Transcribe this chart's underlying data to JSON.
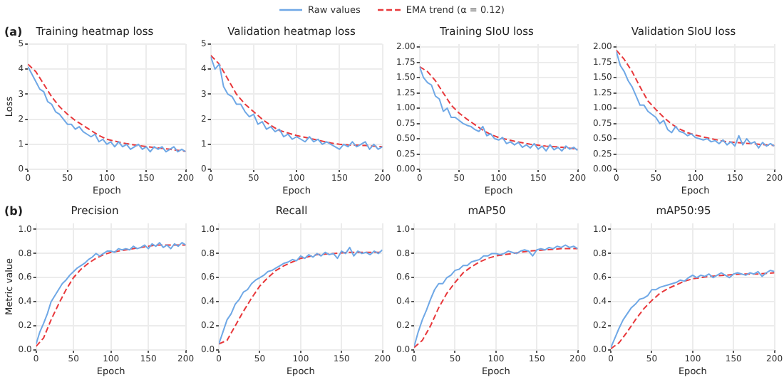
{
  "chart_data": [
    {
      "type": "line",
      "title": "Training heatmap loss",
      "xlabel": "Epoch",
      "ylabel": "Loss",
      "annotations": [
        "(a)"
      ],
      "legend": "top",
      "grid": true,
      "xlim": [
        0,
        200
      ],
      "xticks": [
        0,
        50,
        100,
        150,
        200
      ],
      "ylim": [
        0,
        5
      ],
      "yticks": [
        0,
        1,
        2,
        3,
        4,
        5
      ],
      "x": [
        0,
        5,
        10,
        15,
        20,
        25,
        30,
        35,
        40,
        45,
        50,
        55,
        60,
        65,
        70,
        75,
        80,
        85,
        90,
        95,
        100,
        105,
        110,
        115,
        120,
        125,
        130,
        135,
        140,
        145,
        150,
        155,
        160,
        165,
        170,
        175,
        180,
        185,
        190,
        195,
        200
      ],
      "series": [
        {
          "name": "Raw values",
          "color": "#6fa8e6",
          "line_style": "solid",
          "values": [
            4.1,
            3.8,
            3.5,
            3.2,
            3.1,
            2.7,
            2.6,
            2.3,
            2.2,
            2.0,
            1.8,
            1.8,
            1.6,
            1.7,
            1.5,
            1.4,
            1.3,
            1.4,
            1.1,
            1.2,
            1.0,
            1.1,
            0.9,
            1.1,
            0.9,
            1.0,
            0.8,
            0.9,
            1.0,
            0.8,
            0.9,
            0.7,
            0.9,
            0.8,
            0.9,
            0.7,
            0.8,
            0.9,
            0.7,
            0.8,
            0.7
          ]
        },
        {
          "name": "EMA trend (α = 0.12)",
          "color": "#e8383b",
          "marker": "none",
          "line_style": "dashed",
          "x": [
            0,
            10,
            20,
            30,
            40,
            50,
            60,
            70,
            80,
            90,
            100,
            120,
            140,
            160,
            180,
            200
          ],
          "values": [
            4.2,
            3.9,
            3.4,
            2.9,
            2.5,
            2.2,
            1.95,
            1.75,
            1.55,
            1.35,
            1.2,
            1.05,
            0.95,
            0.87,
            0.8,
            0.72
          ]
        }
      ]
    },
    {
      "type": "line",
      "title": "Validation heatmap loss",
      "xlabel": "Epoch",
      "grid": true,
      "xlim": [
        0,
        200
      ],
      "xticks": [
        0,
        50,
        100,
        150,
        200
      ],
      "ylim": [
        0,
        5
      ],
      "yticks": [
        0,
        1,
        2,
        3,
        4,
        5
      ],
      "x": [
        0,
        5,
        10,
        15,
        20,
        25,
        30,
        35,
        40,
        45,
        50,
        55,
        60,
        65,
        70,
        75,
        80,
        85,
        90,
        95,
        100,
        105,
        110,
        115,
        120,
        125,
        130,
        135,
        140,
        145,
        150,
        155,
        160,
        165,
        170,
        175,
        180,
        185,
        190,
        195,
        200
      ],
      "series": [
        {
          "color": "#6fa8e6",
          "line_style": "solid",
          "values": [
            4.5,
            4.0,
            4.2,
            3.3,
            3.0,
            2.9,
            2.6,
            2.6,
            2.3,
            2.1,
            2.2,
            1.8,
            1.9,
            1.6,
            1.7,
            1.5,
            1.6,
            1.3,
            1.4,
            1.2,
            1.3,
            1.2,
            1.1,
            1.3,
            1.1,
            1.2,
            1.0,
            1.1,
            1.0,
            0.9,
            0.8,
            1.0,
            0.9,
            1.1,
            0.9,
            1.0,
            1.1,
            0.8,
            1.0,
            0.8,
            0.9
          ]
        },
        {
          "color": "#e8383b",
          "marker": "none",
          "line_style": "dashed",
          "x": [
            0,
            10,
            20,
            30,
            40,
            50,
            60,
            70,
            80,
            90,
            100,
            120,
            140,
            150,
            160,
            180,
            200
          ],
          "values": [
            4.55,
            4.2,
            3.6,
            3.0,
            2.6,
            2.3,
            2.0,
            1.75,
            1.55,
            1.45,
            1.35,
            1.2,
            1.05,
            1.0,
            0.97,
            0.95,
            0.9
          ]
        }
      ]
    },
    {
      "type": "line",
      "title": "Training SIoU loss",
      "xlabel": "Epoch",
      "grid": true,
      "xlim": [
        0,
        200
      ],
      "xticks": [
        0,
        50,
        100,
        150,
        200
      ],
      "ylim": [
        0,
        2.05
      ],
      "yticks": [
        {
          "value": 0,
          "label": "0.00"
        },
        {
          "value": 0.25,
          "label": "0.25"
        },
        {
          "value": 0.5,
          "label": "0.50"
        },
        {
          "value": 0.75,
          "label": "0.75"
        },
        {
          "value": 1,
          "label": "1.00"
        },
        {
          "value": 1.25,
          "label": "1.25"
        },
        {
          "value": 1.5,
          "label": "1.50"
        },
        {
          "value": 1.75,
          "label": "1.75"
        },
        {
          "value": 2,
          "label": "2.00"
        }
      ],
      "x": [
        0,
        5,
        10,
        15,
        20,
        25,
        30,
        35,
        40,
        45,
        50,
        55,
        60,
        65,
        70,
        75,
        80,
        85,
        90,
        95,
        100,
        105,
        110,
        115,
        120,
        125,
        130,
        135,
        140,
        145,
        150,
        155,
        160,
        165,
        170,
        175,
        180,
        185,
        190,
        195,
        200
      ],
      "series": [
        {
          "color": "#6fa8e6",
          "line_style": "solid",
          "values": [
            1.68,
            1.5,
            1.42,
            1.38,
            1.2,
            1.15,
            0.95,
            1.0,
            0.85,
            0.85,
            0.8,
            0.75,
            0.72,
            0.7,
            0.65,
            0.62,
            0.7,
            0.55,
            0.58,
            0.5,
            0.48,
            0.52,
            0.42,
            0.45,
            0.4,
            0.44,
            0.36,
            0.4,
            0.35,
            0.42,
            0.33,
            0.38,
            0.3,
            0.4,
            0.32,
            0.36,
            0.3,
            0.38,
            0.33,
            0.36,
            0.31
          ]
        },
        {
          "color": "#e8383b",
          "marker": "none",
          "line_style": "dashed",
          "x": [
            0,
            10,
            20,
            30,
            40,
            50,
            60,
            70,
            80,
            90,
            100,
            120,
            140,
            160,
            180,
            200
          ],
          "values": [
            1.68,
            1.6,
            1.45,
            1.25,
            1.05,
            0.92,
            0.82,
            0.73,
            0.64,
            0.57,
            0.52,
            0.46,
            0.41,
            0.38,
            0.36,
            0.33
          ]
        }
      ]
    },
    {
      "type": "line",
      "title": "Validation SIoU loss",
      "xlabel": "Epoch",
      "grid": true,
      "xlim": [
        0,
        200
      ],
      "xticks": [
        0,
        50,
        100,
        150,
        200
      ],
      "ylim": [
        0,
        2.05
      ],
      "yticks": [
        {
          "value": 0,
          "label": "0.00"
        },
        {
          "value": 0.25,
          "label": "0.25"
        },
        {
          "value": 0.5,
          "label": "0.50"
        },
        {
          "value": 0.75,
          "label": "0.75"
        },
        {
          "value": 1,
          "label": "1.00"
        },
        {
          "value": 1.25,
          "label": "1.25"
        },
        {
          "value": 1.5,
          "label": "1.50"
        },
        {
          "value": 1.75,
          "label": "1.75"
        },
        {
          "value": 2,
          "label": "2.00"
        }
      ],
      "x": [
        0,
        5,
        10,
        15,
        20,
        25,
        30,
        35,
        40,
        45,
        50,
        55,
        60,
        65,
        70,
        75,
        80,
        85,
        90,
        95,
        100,
        105,
        110,
        115,
        120,
        125,
        130,
        135,
        140,
        145,
        150,
        155,
        160,
        165,
        170,
        175,
        180,
        185,
        190,
        195,
        200
      ],
      "series": [
        {
          "color": "#6fa8e6",
          "line_style": "solid",
          "values": [
            1.93,
            1.7,
            1.6,
            1.45,
            1.35,
            1.2,
            1.05,
            1.05,
            0.95,
            0.9,
            0.85,
            0.75,
            0.8,
            0.65,
            0.6,
            0.7,
            0.62,
            0.6,
            0.55,
            0.58,
            0.52,
            0.5,
            0.48,
            0.5,
            0.45,
            0.47,
            0.42,
            0.48,
            0.4,
            0.45,
            0.38,
            0.55,
            0.4,
            0.5,
            0.42,
            0.45,
            0.35,
            0.44,
            0.38,
            0.42,
            0.38
          ]
        },
        {
          "color": "#e8383b",
          "marker": "none",
          "line_style": "dashed",
          "x": [
            0,
            10,
            20,
            30,
            40,
            50,
            60,
            70,
            80,
            90,
            100,
            120,
            140,
            160,
            180,
            200
          ],
          "values": [
            1.95,
            1.8,
            1.6,
            1.35,
            1.12,
            0.98,
            0.85,
            0.74,
            0.66,
            0.6,
            0.56,
            0.5,
            0.45,
            0.43,
            0.41,
            0.39
          ]
        }
      ]
    },
    {
      "type": "line",
      "title": "Precision",
      "xlabel": "Epoch",
      "ylabel": "Metric value",
      "annotations": [
        "(b)"
      ],
      "grid": true,
      "xlim": [
        0,
        200
      ],
      "xticks": [
        0,
        50,
        100,
        150,
        200
      ],
      "ylim": [
        0,
        1.05
      ],
      "yticks": [
        {
          "value": 0,
          "label": "0.0"
        },
        {
          "value": 0.2,
          "label": "0.2"
        },
        {
          "value": 0.4,
          "label": "0.4"
        },
        {
          "value": 0.6,
          "label": "0.6"
        },
        {
          "value": 0.8,
          "label": "0.8"
        },
        {
          "value": 1,
          "label": "1.0"
        }
      ],
      "x": [
        0,
        5,
        10,
        15,
        20,
        25,
        30,
        35,
        40,
        45,
        50,
        55,
        60,
        65,
        70,
        75,
        80,
        85,
        90,
        95,
        100,
        105,
        110,
        115,
        120,
        125,
        130,
        135,
        140,
        145,
        150,
        155,
        160,
        165,
        170,
        175,
        180,
        185,
        190,
        195,
        200
      ],
      "series": [
        {
          "color": "#6fa8e6",
          "line_style": "solid",
          "values": [
            0.05,
            0.15,
            0.22,
            0.3,
            0.4,
            0.45,
            0.5,
            0.55,
            0.58,
            0.62,
            0.65,
            0.68,
            0.7,
            0.72,
            0.75,
            0.77,
            0.8,
            0.78,
            0.8,
            0.82,
            0.82,
            0.81,
            0.84,
            0.83,
            0.84,
            0.83,
            0.86,
            0.84,
            0.85,
            0.87,
            0.84,
            0.88,
            0.86,
            0.89,
            0.85,
            0.87,
            0.84,
            0.88,
            0.86,
            0.89,
            0.87
          ]
        },
        {
          "color": "#e8383b",
          "marker": "none",
          "line_style": "dashed",
          "x": [
            0,
            10,
            20,
            30,
            40,
            50,
            60,
            70,
            80,
            90,
            100,
            120,
            140,
            160,
            180,
            200
          ],
          "values": [
            0.03,
            0.1,
            0.25,
            0.38,
            0.5,
            0.6,
            0.67,
            0.72,
            0.76,
            0.79,
            0.81,
            0.83,
            0.85,
            0.87,
            0.87,
            0.87
          ]
        }
      ]
    },
    {
      "type": "line",
      "title": "Recall",
      "xlabel": "Epoch",
      "grid": true,
      "xlim": [
        0,
        200
      ],
      "xticks": [
        0,
        50,
        100,
        150,
        200
      ],
      "ylim": [
        0,
        1.05
      ],
      "yticks": [
        {
          "value": 0,
          "label": "0.0"
        },
        {
          "value": 0.2,
          "label": "0.2"
        },
        {
          "value": 0.4,
          "label": "0.4"
        },
        {
          "value": 0.6,
          "label": "0.6"
        },
        {
          "value": 0.8,
          "label": "0.8"
        },
        {
          "value": 1,
          "label": "1.0"
        }
      ],
      "x": [
        0,
        5,
        10,
        15,
        20,
        25,
        30,
        35,
        40,
        45,
        50,
        55,
        60,
        65,
        70,
        75,
        80,
        85,
        90,
        95,
        100,
        105,
        110,
        115,
        120,
        125,
        130,
        135,
        140,
        145,
        150,
        155,
        160,
        165,
        170,
        175,
        180,
        185,
        190,
        195,
        200
      ],
      "series": [
        {
          "color": "#6fa8e6",
          "line_style": "solid",
          "values": [
            0.05,
            0.15,
            0.25,
            0.3,
            0.38,
            0.42,
            0.48,
            0.5,
            0.55,
            0.58,
            0.6,
            0.62,
            0.65,
            0.66,
            0.68,
            0.7,
            0.72,
            0.73,
            0.75,
            0.74,
            0.78,
            0.76,
            0.79,
            0.77,
            0.8,
            0.78,
            0.81,
            0.79,
            0.8,
            0.76,
            0.82,
            0.8,
            0.85,
            0.78,
            0.82,
            0.8,
            0.81,
            0.79,
            0.82,
            0.8,
            0.83
          ]
        },
        {
          "color": "#e8383b",
          "marker": "none",
          "line_style": "dashed",
          "x": [
            0,
            10,
            20,
            30,
            40,
            50,
            60,
            70,
            80,
            90,
            100,
            120,
            140,
            160,
            180,
            200
          ],
          "values": [
            0.05,
            0.08,
            0.2,
            0.32,
            0.43,
            0.53,
            0.6,
            0.66,
            0.7,
            0.73,
            0.76,
            0.79,
            0.8,
            0.81,
            0.81,
            0.81
          ]
        }
      ]
    },
    {
      "type": "line",
      "title": "mAP50",
      "xlabel": "Epoch",
      "grid": true,
      "xlim": [
        0,
        200
      ],
      "xticks": [
        0,
        50,
        100,
        150,
        200
      ],
      "ylim": [
        0,
        1.05
      ],
      "yticks": [
        {
          "value": 0,
          "label": "0.0"
        },
        {
          "value": 0.2,
          "label": "0.2"
        },
        {
          "value": 0.4,
          "label": "0.4"
        },
        {
          "value": 0.6,
          "label": "0.6"
        },
        {
          "value": 0.8,
          "label": "0.8"
        },
        {
          "value": 1,
          "label": "1.0"
        }
      ],
      "x": [
        0,
        5,
        10,
        15,
        20,
        25,
        30,
        35,
        40,
        45,
        50,
        55,
        60,
        65,
        70,
        75,
        80,
        85,
        90,
        95,
        100,
        105,
        110,
        115,
        120,
        125,
        130,
        135,
        140,
        145,
        150,
        155,
        160,
        165,
        170,
        175,
        180,
        185,
        190,
        195,
        200
      ],
      "series": [
        {
          "color": "#6fa8e6",
          "line_style": "solid",
          "values": [
            0.03,
            0.15,
            0.25,
            0.33,
            0.42,
            0.5,
            0.55,
            0.55,
            0.6,
            0.62,
            0.66,
            0.67,
            0.7,
            0.7,
            0.73,
            0.74,
            0.75,
            0.78,
            0.78,
            0.8,
            0.8,
            0.79,
            0.8,
            0.82,
            0.81,
            0.8,
            0.82,
            0.83,
            0.82,
            0.78,
            0.83,
            0.84,
            0.83,
            0.85,
            0.84,
            0.86,
            0.85,
            0.87,
            0.85,
            0.86,
            0.84
          ]
        },
        {
          "color": "#e8383b",
          "marker": "none",
          "line_style": "dashed",
          "x": [
            0,
            10,
            20,
            30,
            40,
            50,
            60,
            70,
            80,
            90,
            100,
            120,
            140,
            160,
            180,
            200
          ],
          "values": [
            0.02,
            0.08,
            0.2,
            0.35,
            0.47,
            0.56,
            0.64,
            0.69,
            0.73,
            0.76,
            0.78,
            0.8,
            0.82,
            0.83,
            0.84,
            0.84
          ]
        }
      ]
    },
    {
      "type": "line",
      "title": "mAP50:95",
      "xlabel": "Epoch",
      "grid": true,
      "xlim": [
        0,
        200
      ],
      "xticks": [
        0,
        50,
        100,
        150,
        200
      ],
      "ylim": [
        0,
        1.05
      ],
      "yticks": [
        {
          "value": 0,
          "label": "0.0"
        },
        {
          "value": 0.2,
          "label": "0.2"
        },
        {
          "value": 0.4,
          "label": "0.4"
        },
        {
          "value": 0.6,
          "label": "0.6"
        },
        {
          "value": 0.8,
          "label": "0.8"
        },
        {
          "value": 1,
          "label": "1.0"
        }
      ],
      "x": [
        0,
        5,
        10,
        15,
        20,
        25,
        30,
        35,
        40,
        45,
        50,
        55,
        60,
        65,
        70,
        75,
        80,
        85,
        90,
        95,
        100,
        105,
        110,
        115,
        120,
        125,
        130,
        135,
        140,
        145,
        150,
        155,
        160,
        165,
        170,
        175,
        180,
        185,
        190,
        195,
        200
      ],
      "series": [
        {
          "color": "#6fa8e6",
          "line_style": "solid",
          "values": [
            0.02,
            0.1,
            0.18,
            0.25,
            0.3,
            0.35,
            0.38,
            0.42,
            0.43,
            0.45,
            0.5,
            0.5,
            0.52,
            0.53,
            0.54,
            0.55,
            0.56,
            0.58,
            0.57,
            0.6,
            0.62,
            0.6,
            0.62,
            0.61,
            0.63,
            0.6,
            0.62,
            0.64,
            0.62,
            0.6,
            0.63,
            0.64,
            0.63,
            0.62,
            0.64,
            0.63,
            0.65,
            0.61,
            0.64,
            0.66,
            0.65
          ]
        },
        {
          "color": "#e8383b",
          "marker": "none",
          "line_style": "dashed",
          "x": [
            0,
            10,
            20,
            30,
            40,
            50,
            60,
            70,
            80,
            90,
            100,
            120,
            140,
            160,
            180,
            200
          ],
          "values": [
            0.01,
            0.06,
            0.15,
            0.25,
            0.34,
            0.41,
            0.47,
            0.51,
            0.54,
            0.57,
            0.59,
            0.61,
            0.62,
            0.63,
            0.63,
            0.64
          ]
        }
      ]
    }
  ]
}
